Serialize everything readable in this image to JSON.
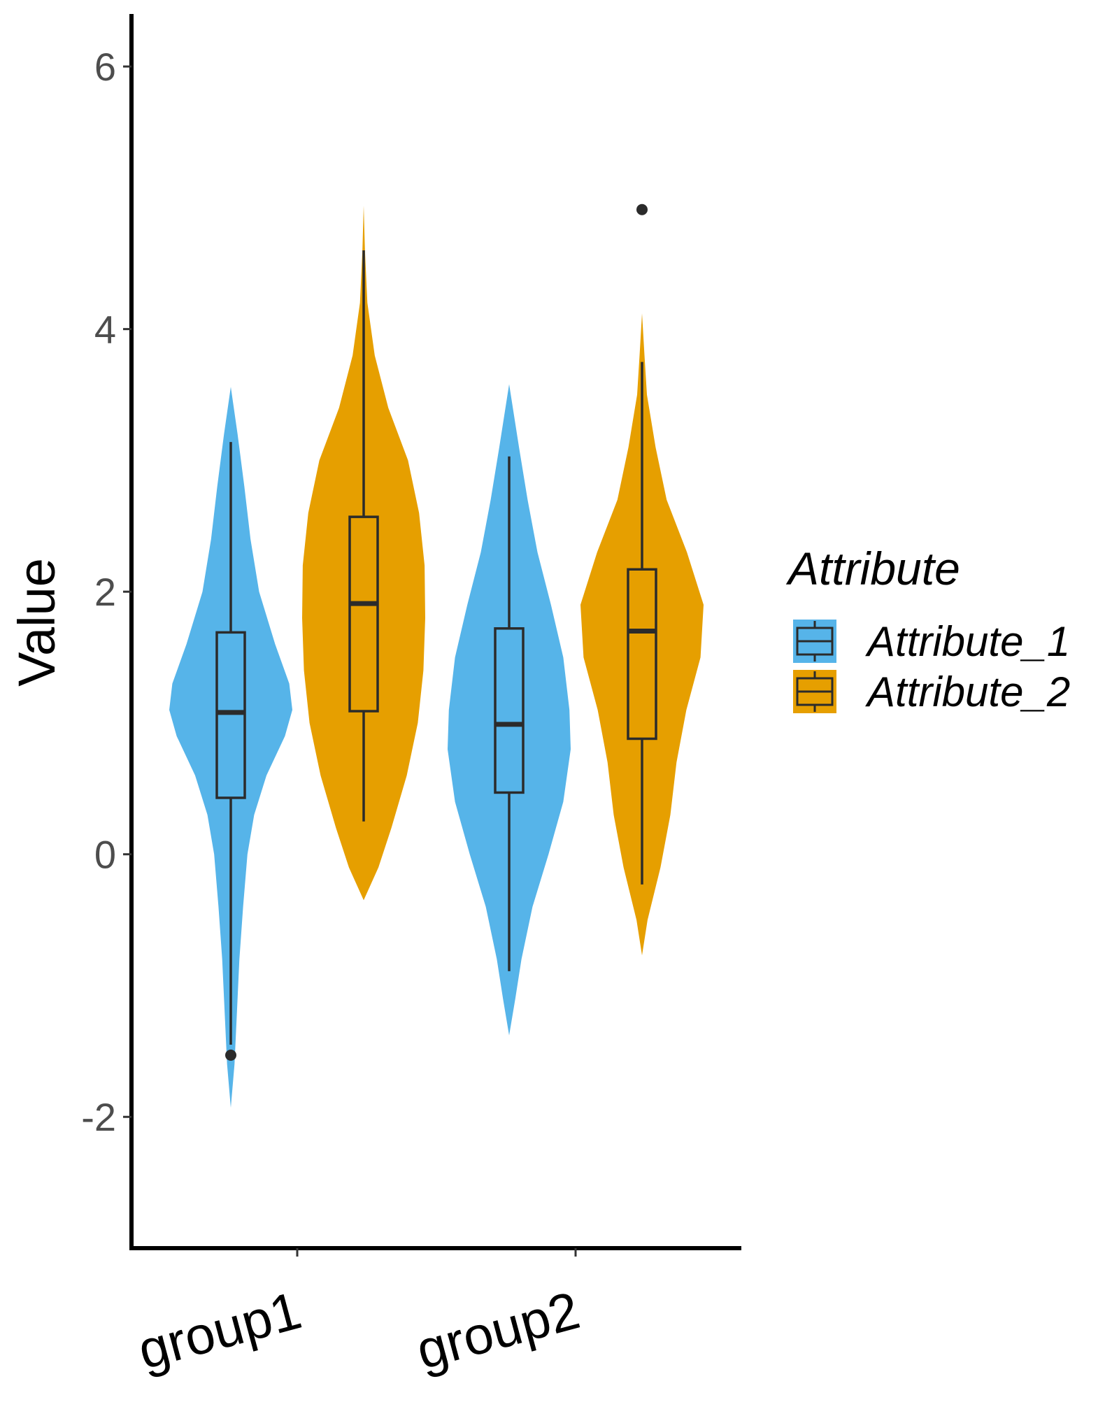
{
  "chart_data": {
    "type": "violin",
    "ylabel": "Value",
    "xlabel": "",
    "ylim": [
      -3,
      6.4
    ],
    "y_ticks": [
      -2,
      0,
      2,
      4,
      6
    ],
    "y_tick_labels": [
      "-2",
      "0",
      "2",
      "4",
      "6"
    ],
    "categories": [
      "group1",
      "group2"
    ],
    "grid": false,
    "legend": {
      "title": "Attribute",
      "placement": "right",
      "entries": [
        "Attribute_1",
        "Attribute_2"
      ]
    },
    "colors": {
      "Attribute_1": "#56B4E9",
      "Attribute_2": "#E69F00",
      "box_stroke": "#2b2b2b",
      "axis": "#000000",
      "tick_text": "#4d4d4d"
    },
    "series": [
      {
        "name": "Attribute_1",
        "groups": [
          {
            "category": "group1",
            "box": {
              "whisker_low": -1.45,
              "q1": 0.43,
              "median": 1.08,
              "q3": 1.69,
              "whisker_high": 3.14
            },
            "outliers": [
              -1.53
            ],
            "density": [
              [
                -1.93,
                0.0
              ],
              [
                -1.6,
                0.06
              ],
              [
                -1.2,
                0.1
              ],
              [
                -0.8,
                0.14
              ],
              [
                -0.4,
                0.2
              ],
              [
                0.0,
                0.27
              ],
              [
                0.3,
                0.38
              ],
              [
                0.6,
                0.58
              ],
              [
                0.9,
                0.88
              ],
              [
                1.1,
                1.0
              ],
              [
                1.3,
                0.95
              ],
              [
                1.6,
                0.72
              ],
              [
                2.0,
                0.46
              ],
              [
                2.4,
                0.32
              ],
              [
                2.8,
                0.22
              ],
              [
                3.2,
                0.11
              ],
              [
                3.56,
                0.0
              ]
            ]
          },
          {
            "category": "group2",
            "box": {
              "whisker_low": -0.89,
              "q1": 0.47,
              "median": 0.99,
              "q3": 1.72,
              "whisker_high": 3.03
            },
            "outliers": [],
            "density": [
              [
                -1.38,
                0.0
              ],
              [
                -1.1,
                0.1
              ],
              [
                -0.8,
                0.2
              ],
              [
                -0.4,
                0.38
              ],
              [
                0.0,
                0.64
              ],
              [
                0.4,
                0.88
              ],
              [
                0.8,
                1.0
              ],
              [
                1.1,
                0.98
              ],
              [
                1.5,
                0.88
              ],
              [
                1.9,
                0.68
              ],
              [
                2.3,
                0.46
              ],
              [
                2.7,
                0.3
              ],
              [
                3.1,
                0.16
              ],
              [
                3.58,
                0.0
              ]
            ]
          }
        ]
      },
      {
        "name": "Attribute_2",
        "groups": [
          {
            "category": "group1",
            "box": {
              "whisker_low": 0.25,
              "q1": 1.09,
              "median": 1.91,
              "q3": 2.57,
              "whisker_high": 4.6
            },
            "outliers": [],
            "density": [
              [
                -0.35,
                0.0
              ],
              [
                -0.1,
                0.24
              ],
              [
                0.2,
                0.45
              ],
              [
                0.6,
                0.7
              ],
              [
                1.0,
                0.88
              ],
              [
                1.4,
                0.97
              ],
              [
                1.8,
                1.0
              ],
              [
                2.2,
                0.99
              ],
              [
                2.6,
                0.9
              ],
              [
                3.0,
                0.72
              ],
              [
                3.4,
                0.4
              ],
              [
                3.8,
                0.18
              ],
              [
                4.2,
                0.06
              ],
              [
                4.6,
                0.02
              ],
              [
                4.94,
                0.0
              ]
            ]
          },
          {
            "category": "group2",
            "box": {
              "whisker_low": -0.23,
              "q1": 0.88,
              "median": 1.7,
              "q3": 2.17,
              "whisker_high": 3.75
            },
            "outliers": [
              4.91
            ],
            "density": [
              [
                -0.77,
                0.0
              ],
              [
                -0.5,
                0.09
              ],
              [
                -0.1,
                0.3
              ],
              [
                0.3,
                0.46
              ],
              [
                0.7,
                0.56
              ],
              [
                1.1,
                0.72
              ],
              [
                1.5,
                0.95
              ],
              [
                1.9,
                1.0
              ],
              [
                2.3,
                0.73
              ],
              [
                2.7,
                0.4
              ],
              [
                3.1,
                0.22
              ],
              [
                3.5,
                0.08
              ],
              [
                3.8,
                0.04
              ],
              [
                4.12,
                0.0
              ]
            ]
          }
        ]
      }
    ]
  }
}
